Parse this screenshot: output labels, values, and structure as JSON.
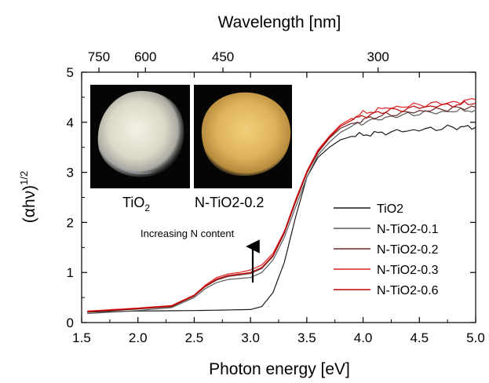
{
  "chart_data": {
    "type": "line",
    "title": "",
    "xlabel": "Photon energy [eV]",
    "ylabel_main": "(αhν)",
    "ylabel_sup": "1/2",
    "top_axis_label": "Wavelength [nm]",
    "xlim": [
      1.5,
      5.0
    ],
    "ylim": [
      0,
      5
    ],
    "x_ticks": [
      "1.5",
      "2.0",
      "2.5",
      "3.0",
      "3.5",
      "4.0",
      "4.5",
      "5.0"
    ],
    "y_ticks": [
      "0",
      "1",
      "2",
      "3",
      "4",
      "5"
    ],
    "top_ticks": [
      {
        "label": "750",
        "nm": 750
      },
      {
        "label": "600",
        "nm": 600
      },
      {
        "label": "450",
        "nm": 450
      },
      {
        "label": "300",
        "nm": 300
      }
    ],
    "grid": false,
    "legend_position": "bottom-right",
    "annotation": "Increasing N content",
    "photos": [
      {
        "caption_main": "TiO",
        "caption_sub": "2",
        "description": "white powder"
      },
      {
        "caption_main": "N-TiO2-0.2",
        "caption_sub": "",
        "description": "yellow powder"
      }
    ],
    "series": [
      {
        "name": "TiO2",
        "color": "#1a1a1a",
        "x": [
          1.55,
          2.0,
          2.5,
          3.0,
          3.1,
          3.2,
          3.3,
          3.4,
          3.5,
          3.6,
          3.7,
          3.8,
          3.9,
          4.0,
          4.2,
          4.5,
          4.8,
          5.0
        ],
        "y": [
          0.21,
          0.23,
          0.24,
          0.26,
          0.32,
          0.6,
          1.2,
          2.1,
          2.9,
          3.3,
          3.5,
          3.65,
          3.72,
          3.75,
          3.8,
          3.85,
          3.9,
          3.9
        ]
      },
      {
        "name": "N-TiO2-0.1",
        "color": "#5a5a5a",
        "x": [
          1.55,
          2.0,
          2.3,
          2.5,
          2.6,
          2.7,
          2.8,
          2.9,
          3.0,
          3.1,
          3.2,
          3.3,
          3.4,
          3.5,
          3.6,
          3.7,
          3.8,
          3.9,
          4.0,
          4.2,
          4.5,
          4.8,
          5.0
        ],
        "y": [
          0.18,
          0.24,
          0.3,
          0.5,
          0.68,
          0.8,
          0.86,
          0.88,
          0.9,
          1.0,
          1.25,
          1.7,
          2.3,
          2.9,
          3.35,
          3.6,
          3.8,
          3.92,
          4.0,
          4.1,
          4.18,
          4.22,
          4.25
        ]
      },
      {
        "name": "N-TiO2-0.2",
        "color": "#6b2a2a",
        "x": [
          1.55,
          2.0,
          2.3,
          2.5,
          2.6,
          2.7,
          2.8,
          2.9,
          3.0,
          3.1,
          3.2,
          3.3,
          3.4,
          3.5,
          3.6,
          3.7,
          3.8,
          3.9,
          4.0,
          4.2,
          4.5,
          4.8,
          5.0
        ],
        "y": [
          0.21,
          0.27,
          0.32,
          0.53,
          0.72,
          0.85,
          0.92,
          0.95,
          0.98,
          1.08,
          1.32,
          1.78,
          2.4,
          2.98,
          3.4,
          3.68,
          3.88,
          3.98,
          4.05,
          4.15,
          4.22,
          4.28,
          4.3
        ]
      },
      {
        "name": "N-TiO2-0.3",
        "color": "#e02020",
        "x": [
          1.55,
          2.0,
          2.3,
          2.5,
          2.6,
          2.7,
          2.8,
          2.9,
          3.0,
          3.1,
          3.2,
          3.3,
          3.4,
          3.5,
          3.6,
          3.7,
          3.8,
          3.9,
          4.0,
          4.2,
          4.5,
          4.8,
          5.0
        ],
        "y": [
          0.23,
          0.29,
          0.34,
          0.55,
          0.75,
          0.9,
          0.97,
          1.0,
          1.05,
          1.15,
          1.38,
          1.82,
          2.45,
          3.02,
          3.45,
          3.72,
          3.95,
          4.08,
          4.18,
          4.28,
          4.35,
          4.4,
          4.45
        ]
      },
      {
        "name": "N-TiO2-0.6",
        "color": "#c00000",
        "x": [
          1.55,
          2.0,
          2.3,
          2.5,
          2.6,
          2.7,
          2.8,
          2.9,
          3.0,
          3.1,
          3.2,
          3.3,
          3.4,
          3.5,
          3.6,
          3.7,
          3.8,
          3.9,
          4.0,
          4.2,
          4.5,
          4.8,
          5.0
        ],
        "y": [
          0.22,
          0.28,
          0.33,
          0.54,
          0.73,
          0.87,
          0.94,
          0.97,
          1.0,
          1.1,
          1.34,
          1.8,
          2.42,
          3.0,
          3.42,
          3.7,
          3.92,
          4.04,
          4.12,
          4.22,
          4.3,
          4.35,
          4.38
        ]
      }
    ]
  }
}
